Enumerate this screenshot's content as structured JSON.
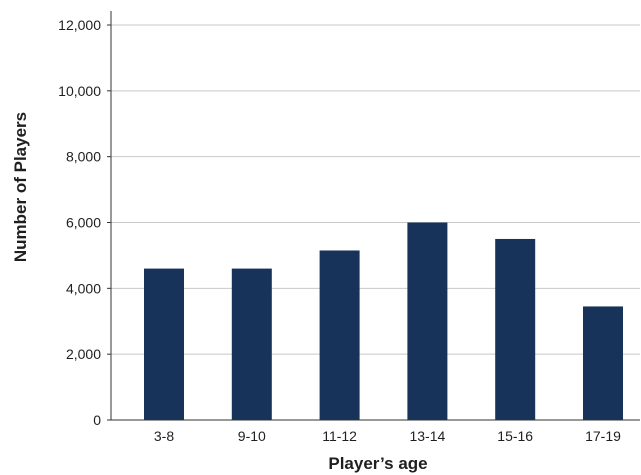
{
  "chart_data": {
    "type": "bar",
    "title": "",
    "xlabel": "Player’s age",
    "ylabel": "Number of Players",
    "categories": [
      "3-8",
      "9-10",
      "11-12",
      "13-14",
      "15-16",
      "17-19"
    ],
    "values": [
      4600,
      4600,
      5150,
      6000,
      5500,
      3450
    ],
    "ylim": [
      0,
      12000
    ],
    "yticks": [
      0,
      2000,
      4000,
      6000,
      8000,
      10000,
      12000
    ],
    "ytick_labels": [
      "0",
      "2,000",
      "4,000",
      "6,000",
      "8,000",
      "10,000",
      "12,000"
    ],
    "grid": "horizontal",
    "bar_color": "#17335a",
    "grid_color": "#c8c8c8"
  }
}
